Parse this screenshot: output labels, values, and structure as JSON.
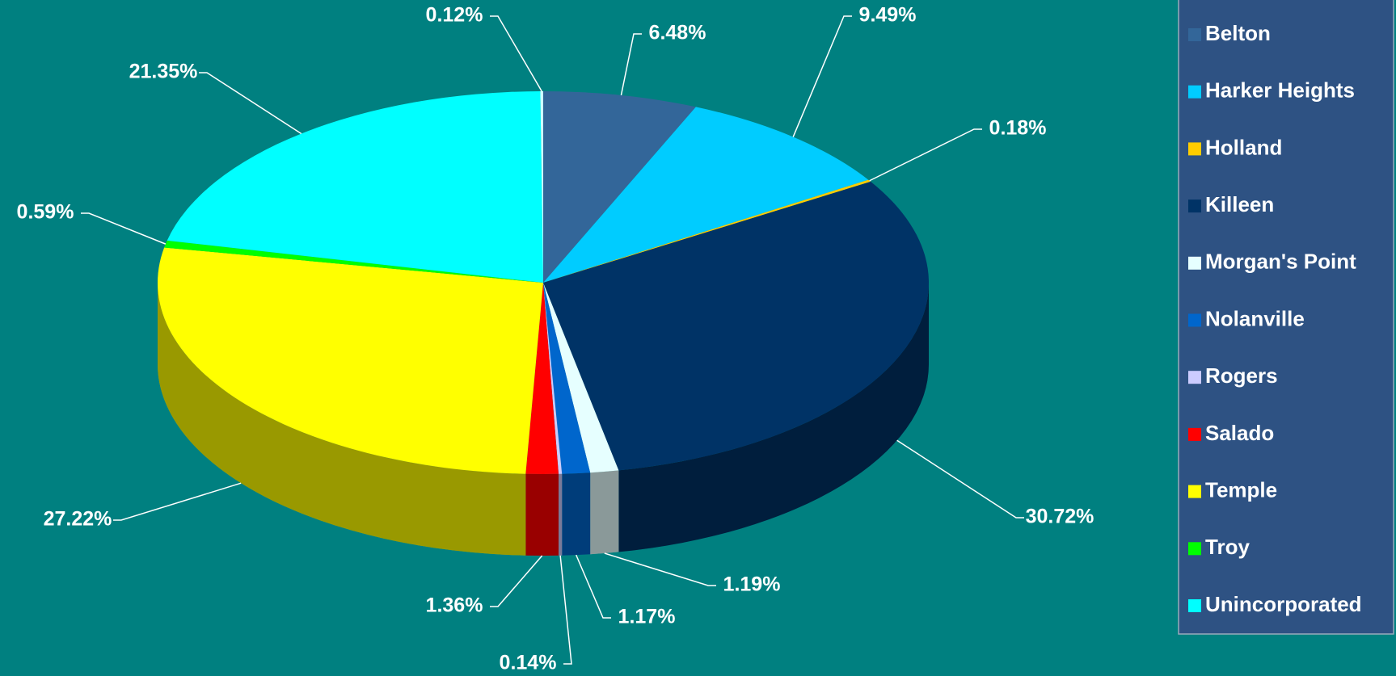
{
  "chart_data": {
    "type": "pie3d",
    "categories": [
      "Belton",
      "Harker Heights",
      "Holland",
      "Killeen",
      "Morgan's Point",
      "Nolanville",
      "Rogers",
      "Salado",
      "Temple",
      "Troy",
      "Unincorporated",
      null
    ],
    "values": [
      6.48,
      9.49,
      0.18,
      30.72,
      1.19,
      1.17,
      0.14,
      1.36,
      27.22,
      0.59,
      21.35,
      0.12
    ],
    "value_labels": [
      "6.48%",
      "9.49%",
      "0.18%",
      "30.72%",
      "1.19%",
      "1.17%",
      "0.14%",
      "1.36%",
      "27.22%",
      "0.59%",
      "21.35%",
      "0.12%"
    ],
    "colors": [
      "#336699",
      "#00ccff",
      "#ffcc00",
      "#003366",
      "#e6ffff",
      "#0066cc",
      "#ccccff",
      "#ff0000",
      "#ffff00",
      "#00ff00",
      "#00ffff",
      "#ccffff"
    ],
    "legend": "right"
  }
}
